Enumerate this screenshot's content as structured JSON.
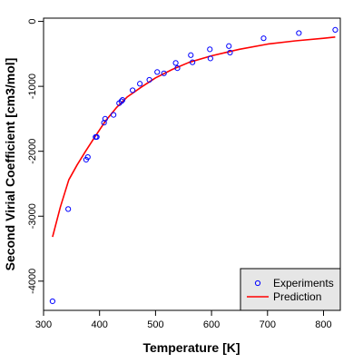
{
  "chart_data": {
    "type": "scatter",
    "title": "",
    "xlabel": "Temperature [K]",
    "ylabel": "Second Virial Coefficient [cm3/mol]",
    "xlim": [
      300,
      830
    ],
    "ylim": [
      -4450,
      50
    ],
    "x_ticks": [
      300,
      400,
      500,
      600,
      700,
      800
    ],
    "y_ticks": [
      0,
      -1000,
      -2000,
      -3000,
      -4000
    ],
    "grid": false,
    "legend_position": "bottom-right",
    "series": [
      {
        "name": "Experiments",
        "kind": "points",
        "color": "#0000ff",
        "x": [
          316,
          344,
          376,
          379,
          393,
          395,
          408,
          410,
          425,
          435,
          439,
          441,
          459,
          472,
          489,
          503,
          515,
          536,
          539,
          563,
          566,
          597,
          598,
          631,
          633,
          693,
          756,
          821
        ],
        "y": [
          -4310,
          -2890,
          -2130,
          -2090,
          -1780,
          -1780,
          -1560,
          -1500,
          -1440,
          -1260,
          -1230,
          -1210,
          -1060,
          -960,
          -900,
          -780,
          -800,
          -640,
          -720,
          -520,
          -630,
          -430,
          -570,
          -380,
          -480,
          -260,
          -180,
          -130
        ]
      },
      {
        "name": "Prediction",
        "kind": "line",
        "color": "#ff0000",
        "x": [
          316,
          330,
          345,
          360,
          375,
          390,
          410,
          430,
          450,
          475,
          500,
          530,
          560,
          600,
          650,
          700,
          750,
          800,
          821
        ],
        "y": [
          -3320,
          -2860,
          -2440,
          -2210,
          -2000,
          -1800,
          -1540,
          -1330,
          -1160,
          -1010,
          -870,
          -740,
          -630,
          -530,
          -430,
          -350,
          -300,
          -260,
          -240
        ]
      }
    ]
  }
}
